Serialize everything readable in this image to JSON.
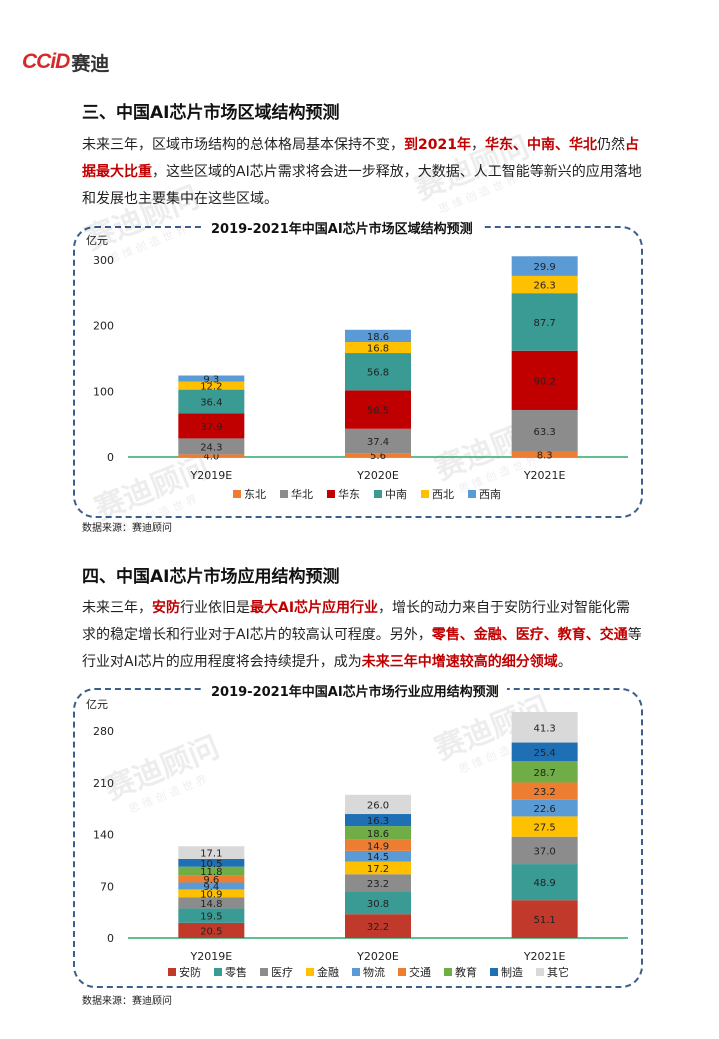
{
  "brand": {
    "logo_latin": "CCiD",
    "logo_cn": "赛迪"
  },
  "watermark": {
    "main": "赛迪顾问",
    "sub": "思 维 创 造 世 界"
  },
  "sec3": {
    "heading": "三、中国AI芯片市场区域结构预测",
    "para": [
      {
        "t": "未来三年，区域市场结构的总体格局基本保持不变，",
        "red": false
      },
      {
        "t": "到2021年",
        "red": true
      },
      {
        "t": "，",
        "red": false
      },
      {
        "t": "华东、中南、华北",
        "red": true
      },
      {
        "t": "仍然",
        "red": false
      },
      {
        "t": "占据最大比重",
        "red": true
      },
      {
        "t": "，这些区域的AI芯片需求将会进一步释放，大数据、人工智能等新兴的应用落地和发展也主要集中在这些区域。",
        "red": false
      }
    ],
    "source": "数据来源：赛迪顾问"
  },
  "sec4": {
    "heading": "四、中国AI芯片市场应用结构预测",
    "para": [
      {
        "t": "未来三年，",
        "red": false
      },
      {
        "t": "安防",
        "red": true
      },
      {
        "t": "行业依旧是",
        "red": false
      },
      {
        "t": "最大AI芯片应用行业",
        "red": true
      },
      {
        "t": "，增长的动力来自于安防行业对智能化需求的稳定增长和行业对于AI芯片的较高认可程度。另外，",
        "red": false
      },
      {
        "t": "零售、金融、医疗、教育、交通",
        "red": true
      },
      {
        "t": "等行业对AI芯片的应用程度将会持续提升，成为",
        "red": false
      },
      {
        "t": "未来三年中增速较高的细分领域",
        "red": true
      },
      {
        "t": "。",
        "red": false
      }
    ],
    "source": "数据来源：赛迪顾问"
  },
  "chart_data": [
    {
      "type": "bar",
      "stacked": true,
      "title": "2019-2021年中国AI芯片市场区域结构预测",
      "ylabel": "亿元",
      "ylim": [
        0,
        300
      ],
      "yticks": [
        0,
        100,
        200,
        300
      ],
      "categories": [
        "Y2019E",
        "Y2020E",
        "Y2021E"
      ],
      "legend_position": "bottom",
      "series": [
        {
          "name": "东北",
          "color": "#ed7d31",
          "values": [
            4.0,
            5.6,
            8.3
          ],
          "labels": [
            "4.0",
            "5.6",
            "8.3"
          ]
        },
        {
          "name": "华北",
          "color": "#8c8c8c",
          "values": [
            24.3,
            37.4,
            63.3
          ],
          "labels": [
            "24.3",
            "37.4",
            "63.3"
          ]
        },
        {
          "name": "华东",
          "color": "#c00000",
          "values": [
            37.9,
            58.5,
            90.2
          ],
          "labels": [
            "37.9",
            "58.5",
            "90.2"
          ]
        },
        {
          "name": "中南",
          "color": "#3a9a94",
          "values": [
            36.4,
            56.8,
            87.7
          ],
          "labels": [
            "36.4",
            "56.8",
            "87.7"
          ]
        },
        {
          "name": "西北",
          "color": "#ffc000",
          "values": [
            12.2,
            16.8,
            26.3
          ],
          "labels": [
            "12.2",
            "16.8",
            "26.3"
          ]
        },
        {
          "name": "西南",
          "color": "#5b9bd5",
          "values": [
            9.3,
            18.6,
            29.9
          ],
          "labels": [
            "9.3",
            "18.6",
            "29.9"
          ]
        }
      ]
    },
    {
      "type": "bar",
      "stacked": true,
      "title": "2019-2021年中国AI芯片市场行业应用结构预测",
      "ylabel": "亿元",
      "ylim": [
        0,
        280
      ],
      "yticks": [
        0,
        70,
        140,
        210,
        280
      ],
      "categories": [
        "Y2019E",
        "Y2020E",
        "Y2021E"
      ],
      "legend_position": "bottom",
      "series": [
        {
          "name": "安防",
          "color": "#c0392b",
          "values": [
            20.5,
            32.2,
            51.1
          ],
          "labels": [
            "20.5",
            "32.2",
            "51.1"
          ]
        },
        {
          "name": "零售",
          "color": "#3a9a94",
          "values": [
            19.5,
            30.8,
            48.9
          ],
          "labels": [
            "19.5",
            "30.8",
            "48.9"
          ]
        },
        {
          "name": "医疗",
          "color": "#8c8c8c",
          "values": [
            14.8,
            23.2,
            37.0
          ],
          "labels": [
            "14.8",
            "23.2",
            "37.0"
          ]
        },
        {
          "name": "金融",
          "color": "#ffc000",
          "values": [
            10.9,
            17.2,
            27.5
          ],
          "labels": [
            "10.9",
            "17.2",
            "27.5"
          ]
        },
        {
          "name": "物流",
          "color": "#5b9bd5",
          "values": [
            9.4,
            14.5,
            22.6
          ],
          "labels": [
            "9.4",
            "14.5",
            "22.6"
          ]
        },
        {
          "name": "交通",
          "color": "#ed7d31",
          "values": [
            9.6,
            14.9,
            23.2
          ],
          "labels": [
            "9.6",
            "14.9",
            "23.2"
          ]
        },
        {
          "name": "教育",
          "color": "#70ad47",
          "values": [
            11.8,
            18.6,
            28.7
          ],
          "labels": [
            "11.8",
            "18.6",
            "28.7"
          ]
        },
        {
          "name": "制造",
          "color": "#1f6fb5",
          "values": [
            10.5,
            16.3,
            25.4
          ],
          "labels": [
            "10.5",
            "16.3",
            "25.4"
          ]
        },
        {
          "name": "其它",
          "color": "#d9d9d9",
          "values": [
            17.1,
            26.0,
            41.3
          ],
          "labels": [
            "17.1",
            "26.0",
            "41.3"
          ]
        }
      ]
    }
  ]
}
